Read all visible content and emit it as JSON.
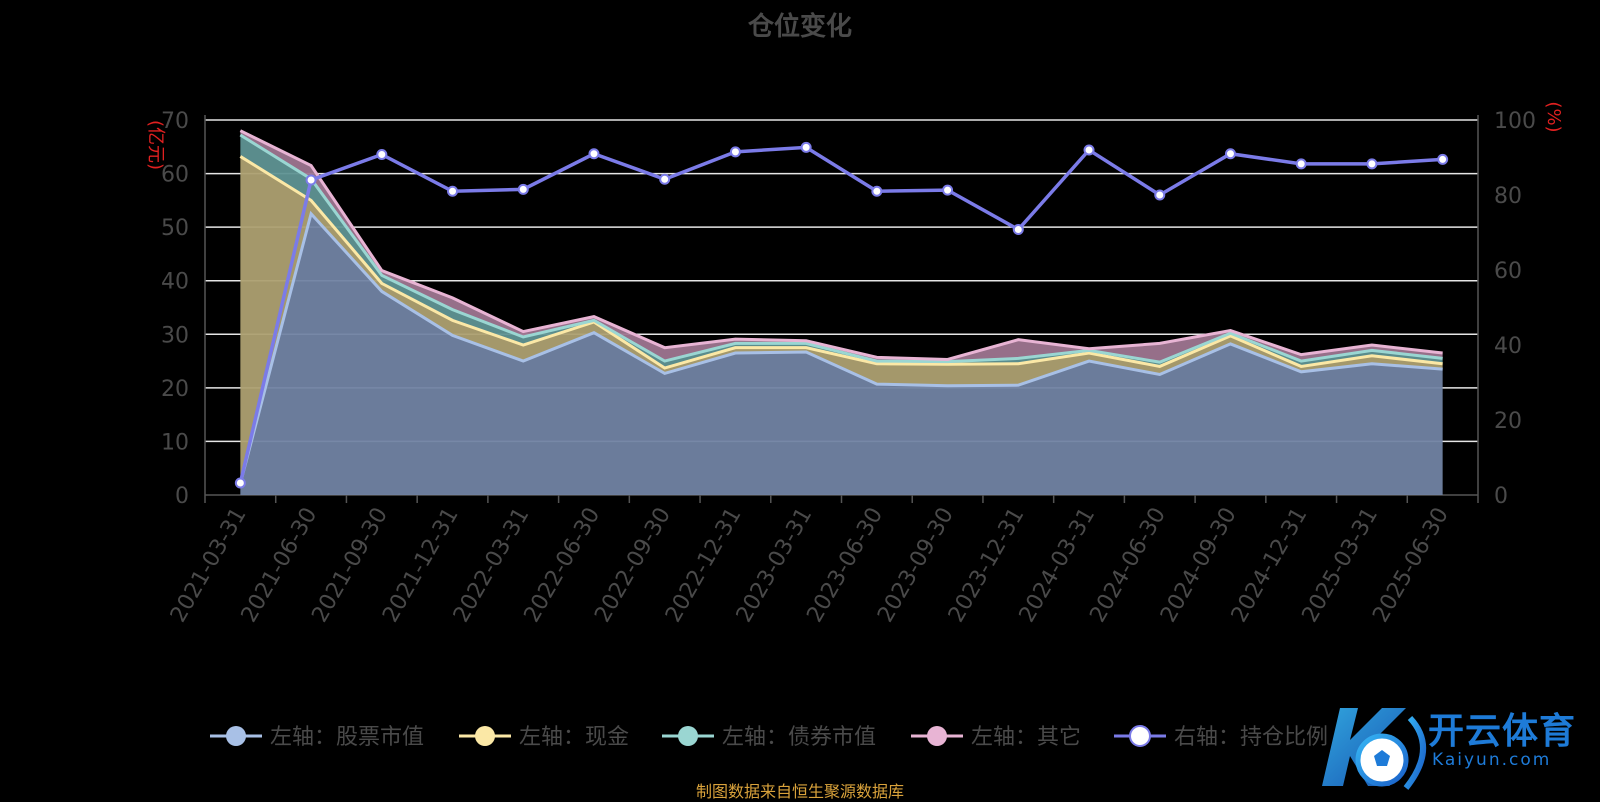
{
  "chart_data": {
    "type": "area",
    "title": "仓位变化",
    "y_left_label": "(亿元)",
    "y_right_label": "(%)",
    "ylim_left": [
      0,
      70
    ],
    "ylim_right": [
      0,
      100
    ],
    "left_ticks": [
      "0",
      "10",
      "20",
      "30",
      "40",
      "50",
      "60",
      "70"
    ],
    "right_ticks": [
      "0",
      "20",
      "40",
      "60",
      "80",
      "100"
    ],
    "grid": true,
    "categories": [
      "2021-03-31",
      "2021-06-30",
      "2021-09-30",
      "2021-12-31",
      "2022-03-31",
      "2022-06-30",
      "2022-09-30",
      "2022-12-31",
      "2023-03-31",
      "2023-06-30",
      "2023-09-30",
      "2023-12-31",
      "2024-03-31",
      "2024-06-30",
      "2024-09-30",
      "2024-12-31",
      "2025-03-31",
      "2025-06-30"
    ],
    "stacked": true,
    "series": [
      {
        "name": "左轴：股票市值",
        "axis": "left",
        "color": "#a8c0e6",
        "values": [
          2.2,
          52.5,
          38.0,
          29.8,
          25.0,
          30.3,
          22.7,
          26.5,
          26.7,
          20.7,
          20.4,
          20.5,
          25.0,
          22.5,
          28.2,
          23.0,
          24.5,
          23.5
        ]
      },
      {
        "name": "左轴：现金",
        "axis": "left",
        "color": "#fbe8a6",
        "values": [
          61.0,
          2.5,
          1.5,
          2.8,
          3.0,
          2.0,
          1.0,
          1.0,
          0.8,
          3.8,
          4.0,
          4.0,
          1.5,
          1.5,
          1.5,
          1.0,
          1.5,
          1.0
        ]
      },
      {
        "name": "左轴：债券市值",
        "axis": "left",
        "color": "#9ad6d2",
        "values": [
          4.0,
          4.0,
          1.5,
          2.0,
          1.5,
          0.3,
          1.3,
          0.8,
          0.8,
          0.5,
          0.5,
          1.0,
          0.5,
          0.8,
          0.5,
          1.0,
          1.0,
          1.0
        ]
      },
      {
        "name": "左轴：其它",
        "axis": "left",
        "color": "#e8b4d4",
        "values": [
          0.8,
          2.5,
          0.9,
          2.2,
          1.0,
          0.7,
          2.5,
          0.8,
          0.5,
          0.7,
          0.4,
          3.5,
          0.3,
          3.5,
          0.5,
          1.2,
          1.0,
          1.0
        ]
      },
      {
        "name": "右轴：持仓比例",
        "axis": "right",
        "color": "#7b7be8",
        "values": [
          3.2,
          84.0,
          90.8,
          81.0,
          81.5,
          91.0,
          84.2,
          91.5,
          92.7,
          81.0,
          81.3,
          70.8,
          92.0,
          80.0,
          91.0,
          88.3,
          88.3,
          89.5
        ]
      }
    ]
  },
  "legend_items": [
    {
      "label": "左轴：股票市值",
      "color": "#a8c0e6"
    },
    {
      "label": "左轴：现金",
      "color": "#fbe8a6"
    },
    {
      "label": "左轴：债券市值",
      "color": "#9ad6d2"
    },
    {
      "label": "左轴：其它",
      "color": "#e8b4d4"
    },
    {
      "label": "右轴：持仓比例",
      "color": "#ffffff"
    }
  ],
  "footer": {
    "source": "制图数据来自恒生聚源数据库"
  },
  "watermark": {
    "brand": "开云体育",
    "url": "Kaiyun.com"
  }
}
